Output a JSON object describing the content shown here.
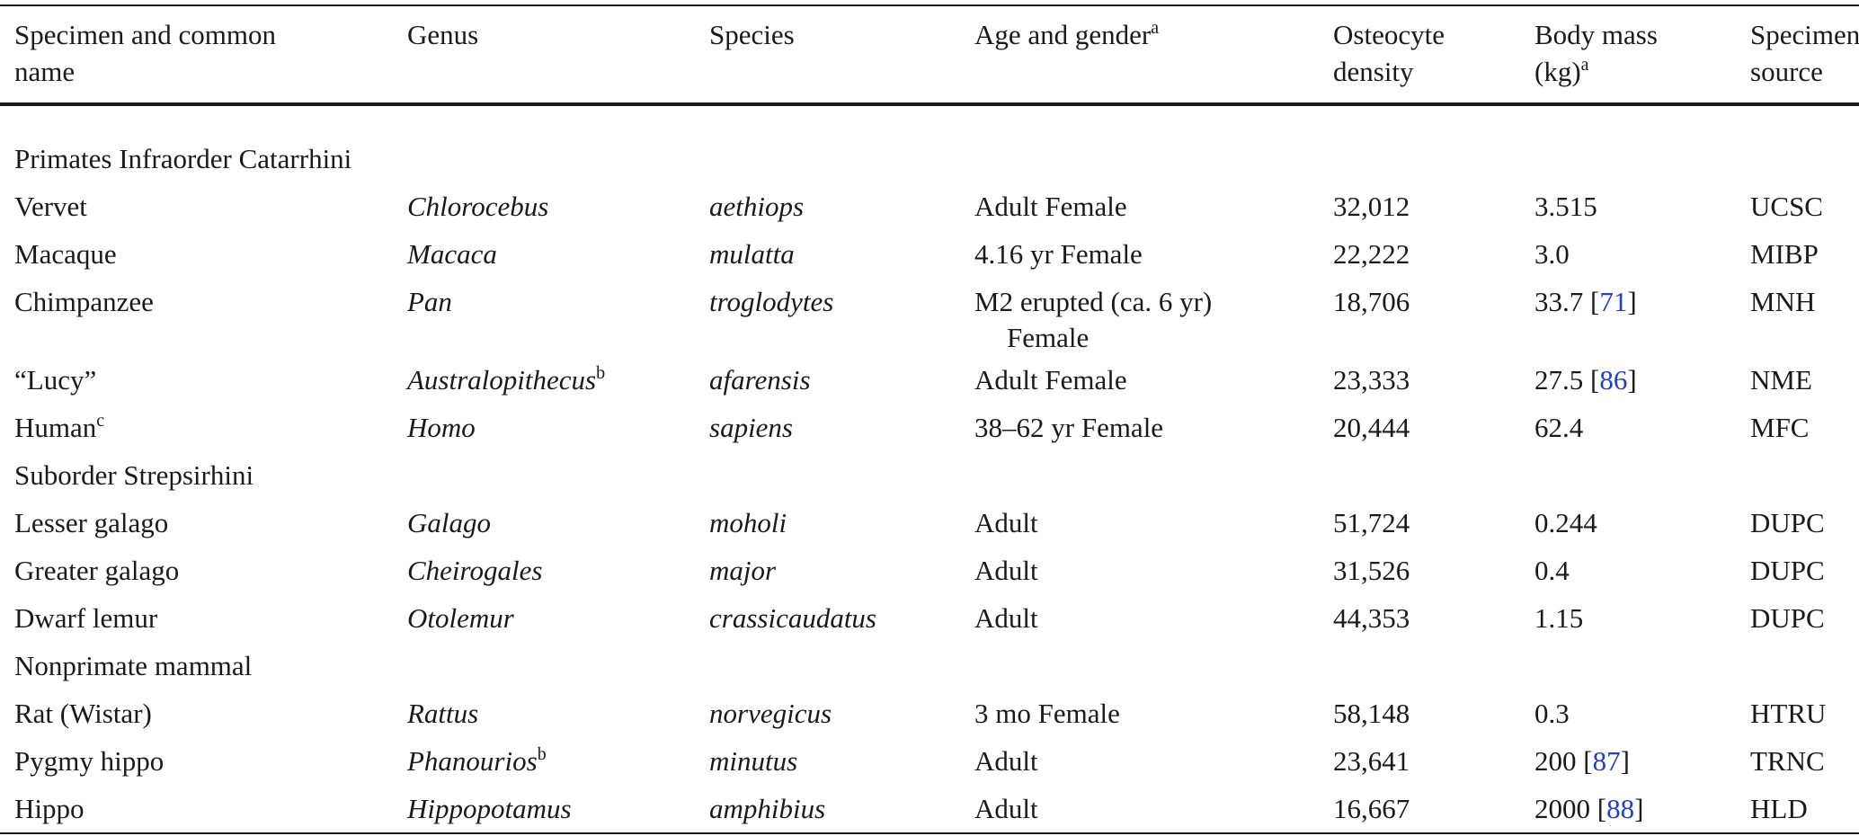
{
  "table": {
    "headers": [
      {
        "line1": "Specimen and common",
        "line2": "name",
        "sup": ""
      },
      {
        "line1": "Genus",
        "line2": "",
        "sup": ""
      },
      {
        "line1": "Species",
        "line2": "",
        "sup": ""
      },
      {
        "line1": "Age and gender",
        "line2": "",
        "sup": "a"
      },
      {
        "line1": "Osteocyte",
        "line2": "density",
        "sup": ""
      },
      {
        "line1": "Body mass",
        "line2": "(kg)",
        "sup": "a"
      },
      {
        "line1": "Specimen",
        "line2": "source",
        "sup": ""
      }
    ],
    "groups": {
      "catarrhini": "Primates Infraorder Catarrhini",
      "strepsirhini": "Suborder Strepsirhini",
      "nonprimate": "Nonprimate mammal"
    },
    "rows": [
      {
        "name": "Vervet",
        "name_sup": "",
        "genus": "Chlorocebus",
        "genus_sup": "",
        "species": "aethiops",
        "age": "Adult Female",
        "age_line2": "",
        "density": "32,012",
        "mass": "3.515",
        "mass_ref": "",
        "source": "UCSC"
      },
      {
        "name": "Macaque",
        "name_sup": "",
        "genus": "Macaca",
        "genus_sup": "",
        "species": "mulatta",
        "age": "4.16 yr Female",
        "age_line2": "",
        "density": "22,222",
        "mass": "3.0",
        "mass_ref": "",
        "source": "MIBP"
      },
      {
        "name": "Chimpanzee",
        "name_sup": "",
        "genus": "Pan",
        "genus_sup": "",
        "species": "troglodytes",
        "age": "M2 erupted (ca. 6 yr)",
        "age_line2": "Female",
        "density": "18,706",
        "mass": "33.7",
        "mass_ref": "71",
        "source": "MNH"
      },
      {
        "name": "“Lucy”",
        "name_sup": "",
        "genus": "Australopithecus",
        "genus_sup": "b",
        "species": "afarensis",
        "age": "Adult Female",
        "age_line2": "",
        "density": "23,333",
        "mass": "27.5",
        "mass_ref": "86",
        "source": "NME"
      },
      {
        "name": "Human",
        "name_sup": "c",
        "genus": "Homo",
        "genus_sup": "",
        "species": "sapiens",
        "age": "38–62 yr Female",
        "age_line2": "",
        "density": "20,444",
        "mass": "62.4",
        "mass_ref": "",
        "source": "MFC"
      },
      {
        "name": "Lesser galago",
        "name_sup": "",
        "genus": "Galago",
        "genus_sup": "",
        "species": "moholi",
        "age": "Adult",
        "age_line2": "",
        "density": "51,724",
        "mass": "0.244",
        "mass_ref": "",
        "source": "DUPC"
      },
      {
        "name": "Greater galago",
        "name_sup": "",
        "genus": "Cheirogales",
        "genus_sup": "",
        "species": "major",
        "age": "Adult",
        "age_line2": "",
        "density": "31,526",
        "mass": "0.4",
        "mass_ref": "",
        "source": "DUPC"
      },
      {
        "name": "Dwarf lemur",
        "name_sup": "",
        "genus": "Otolemur",
        "genus_sup": "",
        "species": "crassicaudatus",
        "age": "Adult",
        "age_line2": "",
        "density": "44,353",
        "mass": "1.15",
        "mass_ref": "",
        "source": "DUPC"
      },
      {
        "name": "Rat (Wistar)",
        "name_sup": "",
        "genus": "Rattus",
        "genus_sup": "",
        "species": "norvegicus",
        "age": "3 mo Female",
        "age_line2": "",
        "density": "58,148",
        "mass": "0.3",
        "mass_ref": "",
        "source": "HTRU"
      },
      {
        "name": "Pygmy hippo",
        "name_sup": "",
        "genus": "Phanourios",
        "genus_sup": "b",
        "species": "minutus",
        "age": "Adult",
        "age_line2": "",
        "density": "23,641",
        "mass": "200",
        "mass_ref": "87",
        "source": "TRNC"
      },
      {
        "name": "Hippo",
        "name_sup": "",
        "genus": "Hippopotamus",
        "genus_sup": "",
        "species": "amphibius",
        "age": "Adult",
        "age_line2": "",
        "density": "16,667",
        "mass": "2000",
        "mass_ref": "88",
        "source": "HLD"
      }
    ]
  }
}
